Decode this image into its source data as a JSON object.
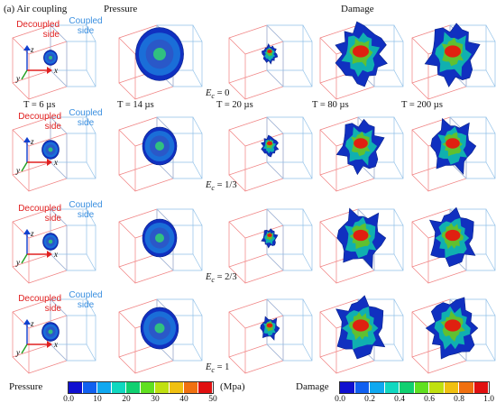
{
  "header": {
    "panel_label": "(a) Air coupling",
    "pressure_label": "Pressure",
    "damage_label": "Damage"
  },
  "side_labels": {
    "decoupled": [
      "Decoupled",
      "side"
    ],
    "coupled": [
      "Coupled",
      "side"
    ]
  },
  "axes": {
    "z": "z",
    "x": "x",
    "y": "y"
  },
  "times": [
    "T = 6 µs",
    "T = 14 µs",
    "T = 20 µs",
    "T = 80 µs",
    "T = 200 µs"
  ],
  "rows": [
    {
      "ec_symbol": "E",
      "ec_sub": "c",
      "ec_value": " = 0"
    },
    {
      "ec_symbol": "E",
      "ec_sub": "c",
      "ec_value": " = 1/3"
    },
    {
      "ec_symbol": "E",
      "ec_sub": "c",
      "ec_value": " = 2/3"
    },
    {
      "ec_symbol": "E",
      "ec_sub": "c",
      "ec_value": " = 1"
    }
  ],
  "pressure_bar": {
    "title": "Pressure",
    "unit": "(Mpa)",
    "ticks": [
      "0.0",
      "10",
      "20",
      "30",
      "40",
      "50"
    ],
    "colors": [
      "#1010d0",
      "#1060f0",
      "#10a8f0",
      "#10d8c0",
      "#10d070",
      "#60e020",
      "#c0e010",
      "#f0c010",
      "#f07010",
      "#e01010"
    ]
  },
  "damage_bar": {
    "title": "Damage",
    "ticks": [
      "0.0",
      "0.2",
      "0.4",
      "0.6",
      "0.8",
      "1.0"
    ],
    "colors": [
      "#1010d0",
      "#1060f0",
      "#10a8f0",
      "#10d8c0",
      "#10d070",
      "#60e020",
      "#c0e010",
      "#f0c010",
      "#f07010",
      "#e01010"
    ]
  },
  "colors": {
    "decoupled": "#e02020",
    "coupled": "#3a8fe0",
    "box_red": "#f08080",
    "box_blue": "#90c0e8"
  }
}
